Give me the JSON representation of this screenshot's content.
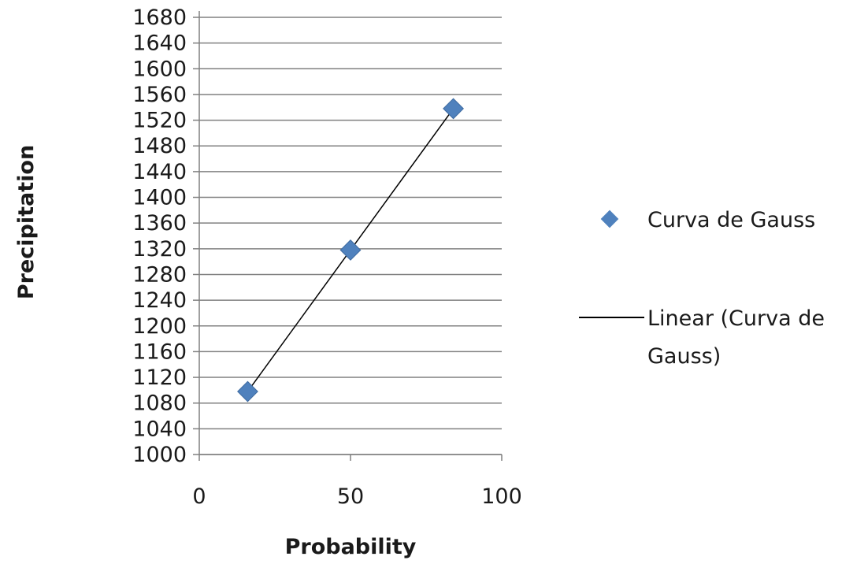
{
  "chart_data": {
    "type": "scatter",
    "xlabel": "Probability",
    "ylabel": "Precipitation",
    "xlim": [
      0,
      100
    ],
    "ylim": [
      1000,
      1680
    ],
    "x_ticks": [
      0,
      50,
      100
    ],
    "y_ticks": [
      1000,
      1040,
      1080,
      1120,
      1160,
      1200,
      1240,
      1280,
      1320,
      1360,
      1400,
      1440,
      1480,
      1520,
      1560,
      1600,
      1640,
      1680
    ],
    "grid": "horizontal",
    "legend_position": "right",
    "series": [
      {
        "name": "Curva de Gauss",
        "marker": "diamond",
        "color": "#4F81BD",
        "points": [
          {
            "x": 16,
            "y": 1098
          },
          {
            "x": 50,
            "y": 1318
          },
          {
            "x": 84,
            "y": 1538
          }
        ]
      }
    ],
    "trendline": {
      "name_line1": "Linear (Curva de",
      "name_line2": "Gauss)",
      "type": "linear",
      "color": "#000000",
      "x_range": [
        16,
        84
      ],
      "y_range": [
        1098,
        1538
      ]
    }
  }
}
